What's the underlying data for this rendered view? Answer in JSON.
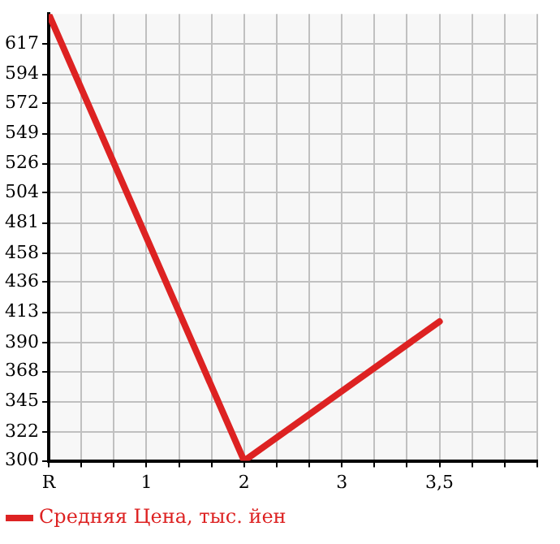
{
  "chart_data": {
    "type": "line",
    "categories": [
      "R",
      "1",
      "2",
      "3",
      "3,5"
    ],
    "series": [
      {
        "name": "Средняя Цена, тыс. йен",
        "color": "#dd2222",
        "values": [
          640,
          470,
          300,
          353,
          406
        ]
      }
    ],
    "ylim": [
      300,
      640
    ],
    "yticks": [
      300,
      322,
      345,
      368,
      390,
      413,
      436,
      458,
      481,
      504,
      526,
      549,
      572,
      594,
      617
    ],
    "grid": true,
    "legend": "bottom",
    "marker": "none",
    "line_style": "solid"
  }
}
